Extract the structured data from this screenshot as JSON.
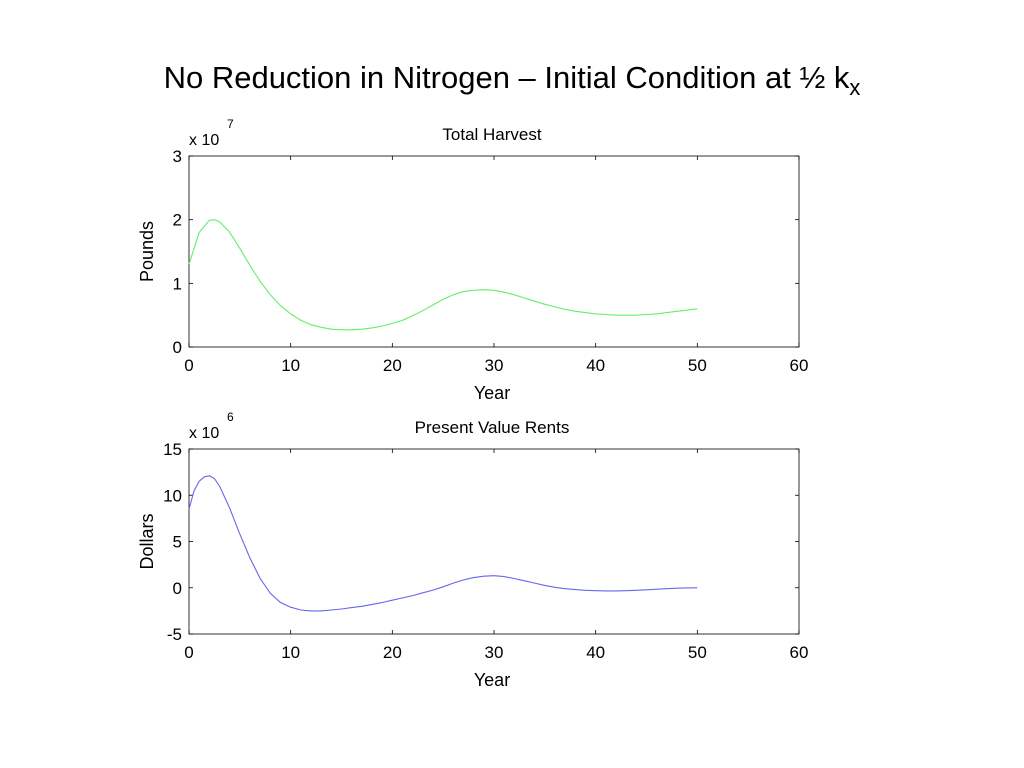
{
  "slide": {
    "title": "No Reduction in Nitrogen – Initial Condition at ½ k",
    "title_subscript": "x"
  },
  "chart_data": [
    {
      "type": "line",
      "title": "Total Harvest",
      "xlabel": "Year",
      "ylabel": "Pounds",
      "exponent_label": "x 10",
      "exponent_power": "7",
      "xlim": [
        0,
        60
      ],
      "ylim": [
        0,
        3
      ],
      "xticks": [
        0,
        10,
        20,
        30,
        40,
        50,
        60
      ],
      "yticks": [
        0,
        1,
        2,
        3
      ],
      "grid": false,
      "color": "#66ee66",
      "series": [
        {
          "x": [
            0,
            1,
            2,
            2.5,
            3,
            4,
            5,
            6,
            7,
            8,
            9,
            10,
            11,
            12,
            13,
            14,
            15,
            16,
            17,
            18,
            19,
            20,
            21,
            22,
            23,
            24,
            25,
            26,
            27,
            28,
            29,
            30,
            31,
            32,
            33,
            34,
            35,
            36,
            37,
            38,
            39,
            40,
            41,
            42,
            43,
            44,
            45,
            46,
            47,
            48,
            49,
            50
          ],
          "values": [
            1.3,
            1.8,
            1.99,
            2.0,
            1.97,
            1.8,
            1.55,
            1.28,
            1.03,
            0.82,
            0.65,
            0.52,
            0.42,
            0.35,
            0.31,
            0.28,
            0.27,
            0.27,
            0.28,
            0.3,
            0.33,
            0.37,
            0.42,
            0.49,
            0.57,
            0.66,
            0.75,
            0.82,
            0.87,
            0.89,
            0.9,
            0.89,
            0.86,
            0.82,
            0.77,
            0.72,
            0.67,
            0.63,
            0.59,
            0.56,
            0.54,
            0.52,
            0.51,
            0.5,
            0.5,
            0.5,
            0.51,
            0.52,
            0.54,
            0.56,
            0.58,
            0.6
          ]
        }
      ]
    },
    {
      "type": "line",
      "title": "Present Value Rents",
      "xlabel": "Year",
      "ylabel": "Dollars",
      "exponent_label": "x 10",
      "exponent_power": "6",
      "xlim": [
        0,
        60
      ],
      "ylim": [
        -5,
        15
      ],
      "xticks": [
        0,
        10,
        20,
        30,
        40,
        50,
        60
      ],
      "yticks": [
        -5,
        0,
        5,
        10,
        15
      ],
      "grid": false,
      "color": "#6666ee",
      "series": [
        {
          "x": [
            0,
            0.5,
            1,
            1.5,
            2,
            2.5,
            3,
            4,
            5,
            6,
            7,
            8,
            9,
            10,
            11,
            12,
            13,
            14,
            15,
            16,
            17,
            18,
            19,
            20,
            21,
            22,
            23,
            24,
            25,
            26,
            27,
            28,
            29,
            30,
            31,
            32,
            33,
            34,
            35,
            36,
            37,
            38,
            39,
            40,
            41,
            42,
            43,
            44,
            45,
            46,
            47,
            48,
            49,
            50
          ],
          "values": [
            8.5,
            10.5,
            11.5,
            12.0,
            12.1,
            11.8,
            11.0,
            8.6,
            5.8,
            3.2,
            1.0,
            -0.6,
            -1.6,
            -2.1,
            -2.4,
            -2.5,
            -2.5,
            -2.4,
            -2.3,
            -2.15,
            -2.0,
            -1.8,
            -1.6,
            -1.35,
            -1.1,
            -0.85,
            -0.55,
            -0.25,
            0.1,
            0.5,
            0.85,
            1.1,
            1.25,
            1.3,
            1.2,
            1.0,
            0.75,
            0.5,
            0.25,
            0.05,
            -0.1,
            -0.2,
            -0.28,
            -0.32,
            -0.34,
            -0.34,
            -0.32,
            -0.28,
            -0.22,
            -0.16,
            -0.1,
            -0.05,
            -0.02,
            0.0
          ]
        }
      ]
    }
  ]
}
